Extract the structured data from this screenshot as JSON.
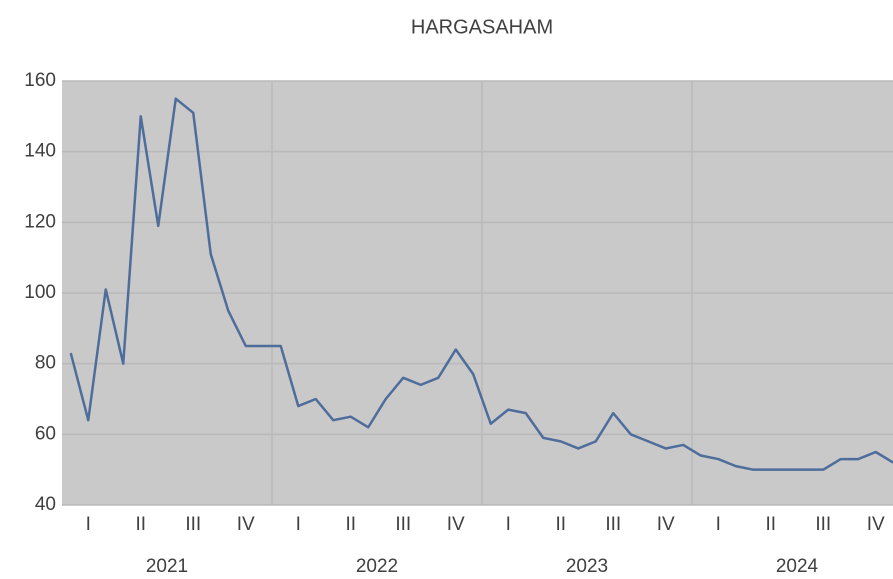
{
  "chart_data": {
    "type": "line",
    "title": "HARGASAHAM",
    "categories": [
      null,
      "I",
      null,
      null,
      "II",
      null,
      null,
      "III",
      null,
      null,
      "IV",
      null,
      null,
      "I",
      null,
      null,
      "II",
      null,
      null,
      "III",
      null,
      null,
      "IV",
      null,
      null,
      "I",
      null,
      null,
      "II",
      null,
      null,
      "III",
      null,
      null,
      "IV",
      null,
      null,
      "I",
      null,
      null,
      "II",
      null,
      null,
      "III",
      null,
      null,
      "IV",
      null
    ],
    "year_groups": [
      "2021",
      "2022",
      "2023",
      "2024"
    ],
    "series": [
      {
        "name": "HARGASAHAM",
        "color": "#4e6d9b",
        "values": [
          83,
          64,
          101,
          80,
          150,
          119,
          155,
          151,
          111,
          95,
          85,
          85,
          85,
          68,
          70,
          64,
          65,
          62,
          70,
          76,
          74,
          76,
          84,
          77,
          63,
          67,
          66,
          59,
          58,
          56,
          58,
          66,
          60,
          58,
          56,
          57,
          54,
          53,
          51,
          50,
          50,
          50,
          50,
          50,
          53,
          53,
          55,
          52
        ]
      }
    ],
    "ylim": [
      40,
      160
    ],
    "yticks": [
      40,
      60,
      80,
      100,
      120,
      140,
      160
    ],
    "grid": true,
    "plot_background": "#c9c9c9"
  }
}
